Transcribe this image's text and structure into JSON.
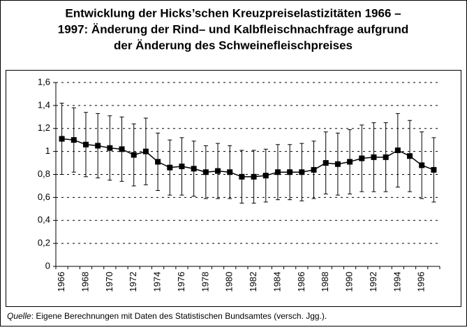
{
  "chart_data": {
    "type": "errorbar-line",
    "title": [
      "Entwicklung der Hicks’schen Kreuzpreiselastizitäten 1966 –",
      "1997: Änderung der Rind– und Kalbfleischnachfrage aufgrund",
      "der Änderung des Schweinefleischpreises"
    ],
    "categories": [
      "1966",
      null,
      "1968",
      null,
      "1970",
      null,
      "1972",
      null,
      "1974",
      null,
      "1976",
      null,
      "1978",
      null,
      "1980",
      null,
      "1982",
      null,
      "1984",
      null,
      "1986",
      null,
      "1988",
      null,
      "1990",
      null,
      "1992",
      null,
      "1994",
      null,
      "1996",
      null
    ],
    "values": [
      1.11,
      1.1,
      1.06,
      1.05,
      1.03,
      1.02,
      0.97,
      1.0,
      0.91,
      0.86,
      0.87,
      0.85,
      0.82,
      0.83,
      0.82,
      0.78,
      0.78,
      0.79,
      0.82,
      0.82,
      0.82,
      0.84,
      0.9,
      0.89,
      0.91,
      0.94,
      0.95,
      0.95,
      1.01,
      0.96,
      0.88,
      0.84
    ],
    "errors": [
      0.31,
      0.28,
      0.28,
      0.28,
      0.28,
      0.28,
      0.27,
      0.29,
      0.25,
      0.24,
      0.25,
      0.24,
      0.23,
      0.24,
      0.23,
      0.23,
      0.23,
      0.23,
      0.24,
      0.24,
      0.25,
      0.25,
      0.27,
      0.27,
      0.28,
      0.29,
      0.3,
      0.3,
      0.32,
      0.31,
      0.29,
      0.28
    ],
    "color": "#000000",
    "ylim": [
      0,
      1.6
    ],
    "yticks": [
      0,
      {
        "value": 0.2,
        "label": "0,2"
      },
      {
        "value": 0.4,
        "label": "0,4"
      },
      {
        "value": 0.6,
        "label": "0,6"
      },
      {
        "value": 0.8,
        "label": "0,8"
      },
      1,
      {
        "value": 1.2,
        "label": "1,2"
      },
      {
        "value": 1.4,
        "label": "1,4"
      },
      {
        "value": 1.6,
        "label": "1,6"
      }
    ],
    "grid": true,
    "source_label": "Quelle",
    "source_text": ": Eigene Berechnungen mit Daten des Statistischen Bundsamtes (versch. Jgg.)."
  }
}
